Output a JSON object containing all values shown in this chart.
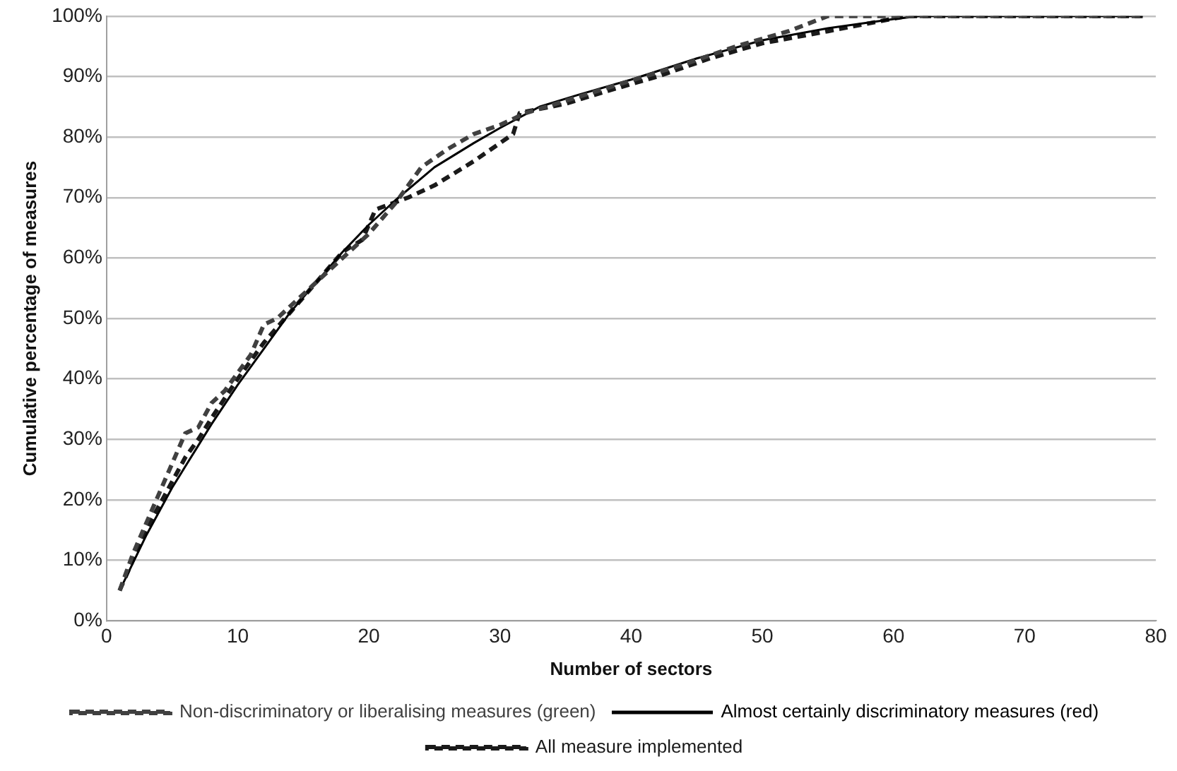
{
  "chart_data": {
    "type": "line",
    "xlabel": "Number of sectors",
    "ylabel": "Cumulative percentage of measures",
    "xlim": [
      0,
      80
    ],
    "xticks": [
      0,
      10,
      20,
      30,
      40,
      50,
      60,
      70,
      80
    ],
    "ylim": [
      0,
      100
    ],
    "yticks": [
      {
        "value": 0,
        "label": "0%"
      },
      {
        "value": 10,
        "label": "10%"
      },
      {
        "value": 20,
        "label": "20%"
      },
      {
        "value": 30,
        "label": "30%"
      },
      {
        "value": 40,
        "label": "40%"
      },
      {
        "value": 50,
        "label": "50%"
      },
      {
        "value": 60,
        "label": "60%"
      },
      {
        "value": 70,
        "label": "70%"
      },
      {
        "value": 80,
        "label": "80%"
      },
      {
        "value": 90,
        "label": "90%"
      },
      {
        "value": 100,
        "label": "100%"
      }
    ],
    "grid": "y",
    "legend": "bottom",
    "marker": "none",
    "series": [
      {
        "name": "Non-discriminatory or liberalising measures (green)",
        "color": "#404040",
        "line_style": "dashed",
        "x": [
          1,
          2,
          3,
          4,
          5,
          6,
          7,
          8,
          9,
          10,
          11,
          12,
          13,
          14,
          16,
          18,
          20,
          22,
          24,
          26,
          28,
          30,
          32,
          35,
          38,
          41,
          44,
          48,
          52,
          55,
          60,
          79
        ],
        "values": [
          5,
          11,
          16,
          21,
          26,
          31,
          32,
          36,
          38,
          41,
          44,
          49,
          50,
          52,
          56,
          60,
          64,
          69,
          75,
          78,
          80.5,
          82,
          84,
          86,
          88,
          90,
          92,
          95,
          97.5,
          100,
          100,
          100
        ]
      },
      {
        "name": "Almost certainly discriminatory measures (red)",
        "color": "#000000",
        "line_style": "solid",
        "x": [
          1,
          2,
          3,
          4,
          5,
          6,
          7,
          8,
          10,
          12,
          14,
          16,
          18,
          20,
          22,
          25,
          28,
          30,
          33,
          36,
          40,
          45,
          50,
          55,
          60,
          62,
          79
        ],
        "values": [
          5,
          9.5,
          14,
          18,
          22,
          25.5,
          29,
          32.5,
          39,
          45,
          51,
          56,
          61,
          65.5,
          69.5,
          75,
          79,
          81.5,
          85,
          87,
          89.5,
          93,
          96,
          98,
          99.5,
          100,
          100
        ]
      },
      {
        "name": "All measure implemented",
        "color": "#1a1a1a",
        "line_style": "dashed",
        "x": [
          1,
          2,
          3,
          4,
          5,
          6,
          7,
          8,
          10,
          12,
          14,
          16,
          18,
          19.5,
          20.5,
          23,
          25,
          28,
          31,
          31.5,
          35,
          38,
          42,
          46,
          50,
          55,
          61,
          79
        ],
        "values": [
          5,
          10,
          15,
          19,
          23,
          27,
          30,
          33.5,
          40,
          46,
          51,
          56,
          61,
          63,
          68,
          70,
          72,
          76,
          80.5,
          84,
          85.5,
          87.5,
          90,
          93,
          95.5,
          97.5,
          100,
          100
        ]
      }
    ]
  }
}
